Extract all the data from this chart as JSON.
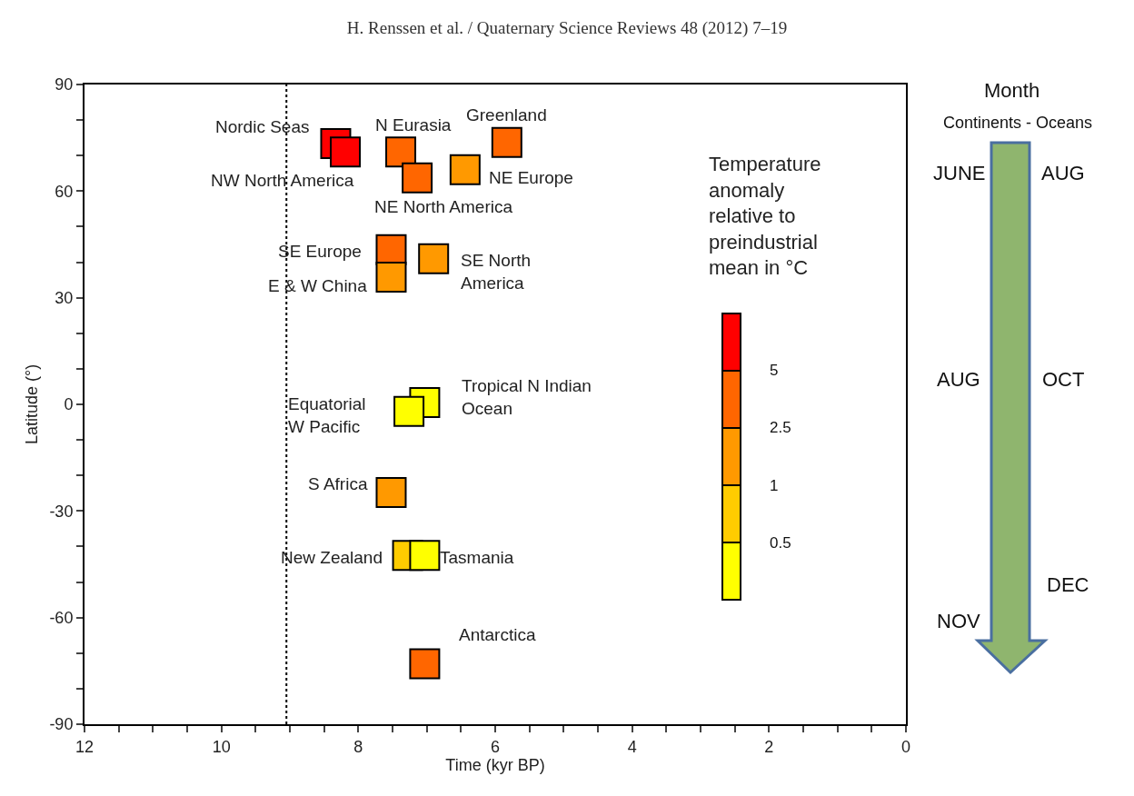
{
  "chart_data": {
    "type": "scatter",
    "title": "H. Renssen et al. / Quaternary Science Reviews 48 (2012) 7–19",
    "xlabel": "Time (kyr BP)",
    "ylabel": "Latitude (°)",
    "clabel": "Temperature\nanomaly\nrelative to\npreindustrial\nmean in °C",
    "series": [
      {
        "x": [
          8.33,
          8.19,
          7.38,
          7.14,
          6.44,
          5.83,
          7.52,
          7.52,
          6.9,
          7.03,
          7.26,
          7.52,
          7.28,
          7.03,
          7.03
        ],
        "values": [
          73.4,
          71,
          71,
          63.7,
          66,
          73.7,
          43.5,
          35.8,
          41,
          0.5,
          -2,
          -24.8,
          -42.5,
          -42.5,
          -73
        ],
        "colors": [
          "#ff0000",
          "#ff0000",
          "#ff6600",
          "#ff6600",
          "#ff9900",
          "#ff6600",
          "#ff6600",
          "#ff9900",
          "#ff9900",
          "#ffff00",
          "#ffff00",
          "#ff9900",
          "#ffcc00",
          "#ffff00",
          "#ff6600"
        ]
      }
    ],
    "marker": "square",
    "xlim": [
      12,
      0
    ],
    "xticks": [
      12,
      {
        "value": 11.5,
        "label": null
      },
      {
        "value": 11,
        "label": null
      },
      {
        "value": 10.5,
        "label": null
      },
      10,
      {
        "value": 9.5,
        "label": null
      },
      {
        "value": 9,
        "label": null
      },
      {
        "value": 8.5,
        "label": null
      },
      8,
      {
        "value": 7.5,
        "label": null
      },
      {
        "value": 7,
        "label": null
      },
      {
        "value": 6.5,
        "label": null
      },
      6,
      {
        "value": 5.5,
        "label": null
      },
      {
        "value": 5,
        "label": null
      },
      {
        "value": 4.5,
        "label": null
      },
      4,
      {
        "value": 3.5,
        "label": null
      },
      {
        "value": 3,
        "label": null
      },
      {
        "value": 2.5,
        "label": null
      },
      2,
      {
        "value": 1.5,
        "label": null
      },
      {
        "value": 1,
        "label": null
      },
      {
        "value": 0.5,
        "label": null
      },
      0
    ],
    "ylim": [
      -90,
      90
    ],
    "yticks": [
      -90,
      {
        "value": -80,
        "label": null
      },
      {
        "value": -70,
        "label": null
      },
      -60,
      {
        "value": -50,
        "label": null
      },
      {
        "value": -40,
        "label": null
      },
      -30,
      {
        "value": -20,
        "label": null
      },
      {
        "value": -10,
        "label": null
      },
      0,
      {
        "value": 10,
        "label": null
      },
      {
        "value": 20,
        "label": null
      },
      30,
      {
        "value": 40,
        "label": null
      },
      {
        "value": 50,
        "label": null
      },
      60,
      {
        "value": 70,
        "label": null
      },
      {
        "value": 80,
        "label": null
      },
      90
    ],
    "ref_lines": [
      {
        "axis": "x",
        "value": 9.05,
        "line_style": "dotted",
        "color": "#000000"
      }
    ],
    "annotations": [
      {
        "text": "Nordic Seas",
        "x": 8.33,
        "y": 73.4
      },
      {
        "text": "N Eurasia",
        "x": 7.38,
        "y": 71
      },
      {
        "text": "Greenland",
        "x": 5.83,
        "y": 73.7
      },
      {
        "text": "NW North America",
        "x": 8.19,
        "y": 71
      },
      {
        "text": "NE Europe",
        "x": 6.44,
        "y": 66
      },
      {
        "text": "NE North America",
        "x": 7.14,
        "y": 63.7
      },
      {
        "text": "SE Europe",
        "x": 7.52,
        "y": 43.5
      },
      {
        "text": "E & W China",
        "x": 7.52,
        "y": 35.8
      },
      {
        "text": "SE North\nAmerica",
        "x": 6.9,
        "y": 41
      },
      {
        "text": "Tropical N Indian\nOcean",
        "x": 7.03,
        "y": 0.5
      },
      {
        "text": "Equatorial\nW Pacific",
        "x": 7.26,
        "y": -2
      },
      {
        "text": "S Africa",
        "x": 7.52,
        "y": -24.8
      },
      {
        "text": "New Zealand",
        "x": 7.28,
        "y": -42.5
      },
      {
        "text": "Tasmania",
        "x": 7.03,
        "y": -42.5
      },
      {
        "text": "Antarctica",
        "x": 7.03,
        "y": -73
      },
      "5",
      "2.5",
      "1",
      "0.5",
      "Month",
      "Continents - Oceans",
      "JUNE",
      "AUG",
      "AUG",
      "OCT",
      "NOV",
      "DEC"
    ]
  }
}
